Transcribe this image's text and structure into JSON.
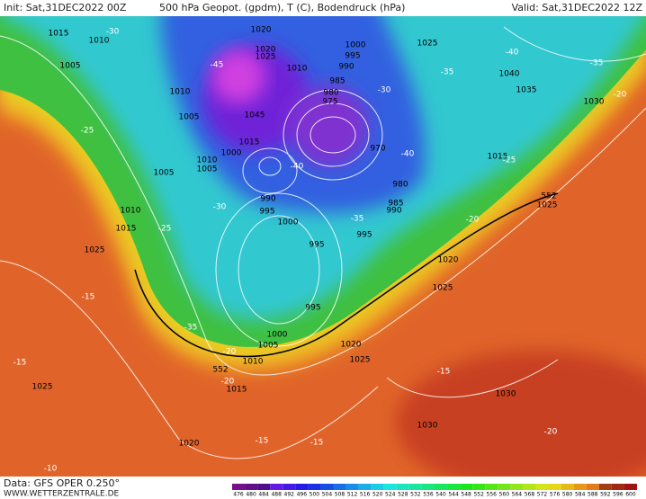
{
  "header": {
    "init": "Init: Sat,31DEC2022 00Z",
    "title": "500 hPa Geopot. (gpdm), T (C), Bodendruck (hPa)",
    "valid": "Valid: Sat,31DEC2022 12Z"
  },
  "footer": {
    "data": "Data: GFS OPER 0.250°",
    "site": "WWW.WETTERZENTRALE.DE"
  },
  "colorbar": [
    476,
    480,
    484,
    488,
    492,
    496,
    500,
    504,
    508,
    512,
    516,
    520,
    524,
    528,
    532,
    536,
    540,
    544,
    548,
    552,
    556,
    560,
    564,
    568,
    572,
    576,
    580,
    584,
    588,
    592,
    596,
    600
  ],
  "map_labels": {
    "isobars": [
      1015,
      1010,
      1005,
      1010,
      1005,
      1020,
      1020,
      1025,
      1010,
      1000,
      995,
      990,
      985,
      980,
      975,
      1045,
      1015,
      1000,
      1010,
      1005,
      1005,
      970,
      980,
      985,
      990,
      990,
      995,
      1000,
      995,
      995,
      1025,
      1040,
      1035,
      1030,
      1015,
      1025,
      1010,
      1015,
      1025,
      1020,
      1025,
      995,
      1000,
      1005,
      1010,
      1015,
      1020,
      1025,
      1030,
      1030,
      1020,
      1025
    ],
    "heights": [
      552,
      552
    ],
    "temperatures": [
      -30,
      -35,
      -40,
      -35,
      -20,
      -25,
      -45,
      -40,
      -30,
      -25,
      -35,
      -15,
      -35,
      -15,
      -20,
      -20,
      -15,
      -15,
      -15,
      -10,
      -20,
      -20,
      -25,
      -30,
      -40
    ]
  }
}
